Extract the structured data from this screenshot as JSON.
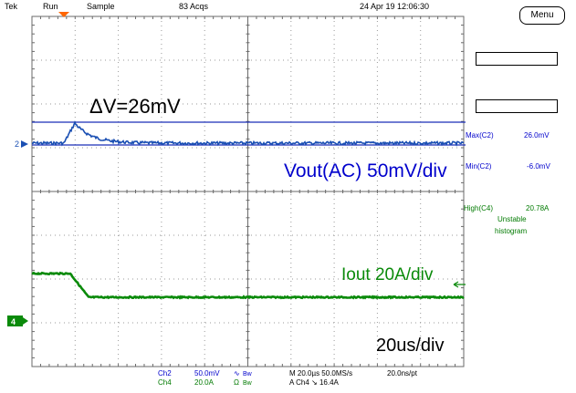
{
  "status_bar": {
    "brand": "Tek",
    "run_state": "Run",
    "acq_mode": "Sample",
    "acq_count": "83 Acqs",
    "datetime": "24 Apr 19 12:06:30",
    "menu_label": "Menu"
  },
  "annotations": {
    "delta_v": "ΔV=26mV",
    "vout": "Vout(AC) 50mV/div",
    "iout": "Iout 20A/div",
    "timebase": "20us/div"
  },
  "markers": {
    "ch2": "2",
    "ch4": "4"
  },
  "measurements": [
    {
      "label": "Max(C2)",
      "value": "26.0mV",
      "color": "#0000cc"
    },
    {
      "label": "Min(C2)",
      "value": "-6.0mV",
      "color": "#0000cc"
    },
    {
      "label": "High(C4)",
      "value": "20.78A",
      "color": "#007a00",
      "note1": "Unstable",
      "note2": "histogram"
    }
  ],
  "channels": {
    "ch2": {
      "name": "Ch2",
      "scale": "50.0mV",
      "coupling": "∿",
      "bw": "Bw",
      "color": "#0000cc"
    },
    "ch4": {
      "name": "Ch4",
      "scale": "20.0A",
      "coupling": "Ω",
      "bw": "Bw",
      "color": "#007a00"
    }
  },
  "horizontal": {
    "line1": "M 20.0µs 50.0MS/s",
    "line2": "A  Ch4  ↘  16.4A",
    "resolution": "20.0ns/pt"
  },
  "colors": {
    "trace_blue": "#1a4fb3",
    "trace_green": "#0a8a0a",
    "grid": "#8a8a8a",
    "annotation_blue": "#0000cc",
    "annotation_green": "#0a8a0a",
    "trigger_marker": "#ff6600"
  }
}
